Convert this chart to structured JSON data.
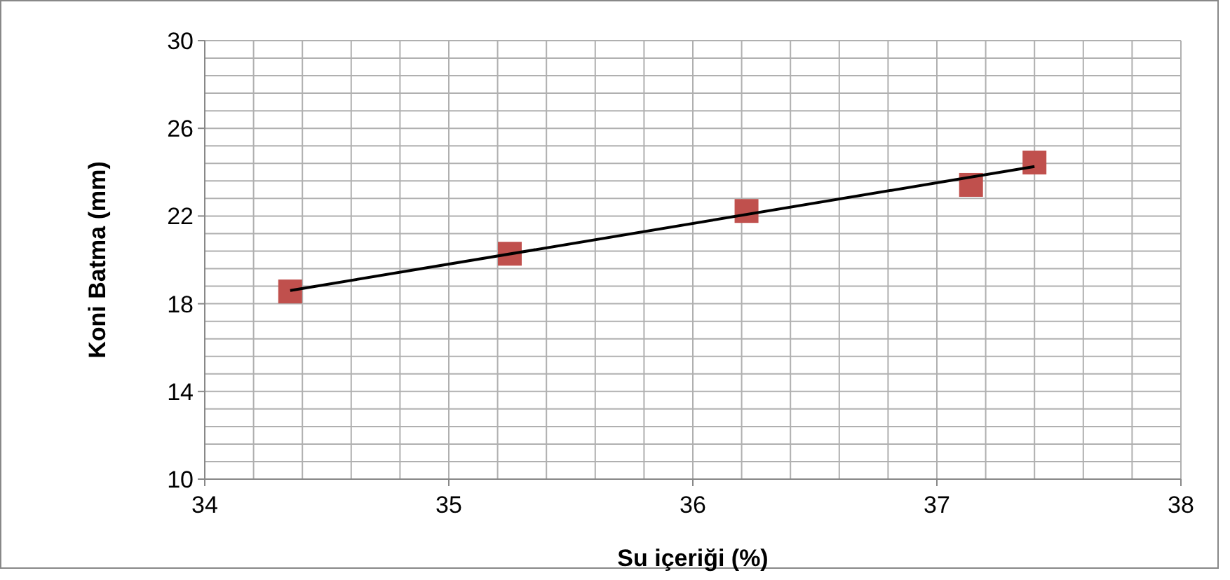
{
  "chart_data": {
    "type": "scatter",
    "xlabel": "Su içeriği (%)",
    "ylabel": "Koni Batma (mm)",
    "xlim": [
      34,
      38
    ],
    "ylim": [
      10,
      30
    ],
    "xticks": [
      34,
      {
        "value": 34.2,
        "label": null
      },
      {
        "value": 34.4,
        "label": null
      },
      {
        "value": 34.6,
        "label": null
      },
      {
        "value": 34.8,
        "label": null
      },
      35,
      {
        "value": 35.2,
        "label": null
      },
      {
        "value": 35.4,
        "label": null
      },
      {
        "value": 35.6,
        "label": null
      },
      {
        "value": 35.8,
        "label": null
      },
      36,
      {
        "value": 36.2,
        "label": null
      },
      {
        "value": 36.4,
        "label": null
      },
      {
        "value": 36.6,
        "label": null
      },
      {
        "value": 36.8,
        "label": null
      },
      37,
      {
        "value": 37.2,
        "label": null
      },
      {
        "value": 37.4,
        "label": null
      },
      {
        "value": 37.6,
        "label": null
      },
      {
        "value": 37.8,
        "label": null
      },
      38
    ],
    "yticks": [
      10,
      {
        "value": 10.8,
        "label": null
      },
      {
        "value": 11.6,
        "label": null
      },
      {
        "value": 12.4,
        "label": null
      },
      {
        "value": 13.2,
        "label": null
      },
      14,
      {
        "value": 14.8,
        "label": null
      },
      {
        "value": 15.6,
        "label": null
      },
      {
        "value": 16.4,
        "label": null
      },
      {
        "value": 17.2,
        "label": null
      },
      18,
      {
        "value": 18.8,
        "label": null
      },
      {
        "value": 19.6,
        "label": null
      },
      {
        "value": 20.4,
        "label": null
      },
      {
        "value": 21.2,
        "label": null
      },
      22,
      {
        "value": 22.8,
        "label": null
      },
      {
        "value": 23.6,
        "label": null
      },
      {
        "value": 24.4,
        "label": null
      },
      {
        "value": 25.2,
        "label": null
      },
      26,
      {
        "value": 26.8,
        "label": null
      },
      {
        "value": 27.6,
        "label": null
      },
      {
        "value": 28.4,
        "label": null
      },
      {
        "value": 29.2,
        "label": null
      },
      30
    ],
    "grid": true,
    "series": [
      {
        "color": "#c0504d",
        "marker": "square",
        "x": [
          34.35,
          35.25,
          36.22,
          37.14,
          37.4
        ],
        "values": [
          18.56,
          20.28,
          22.23,
          23.42,
          24.44
        ]
      },
      {
        "type": "line",
        "color": "#000000",
        "marker": "none",
        "line_style": "solid",
        "x": [
          34.35,
          37.4
        ],
        "values": [
          18.6,
          24.26
        ]
      }
    ]
  }
}
